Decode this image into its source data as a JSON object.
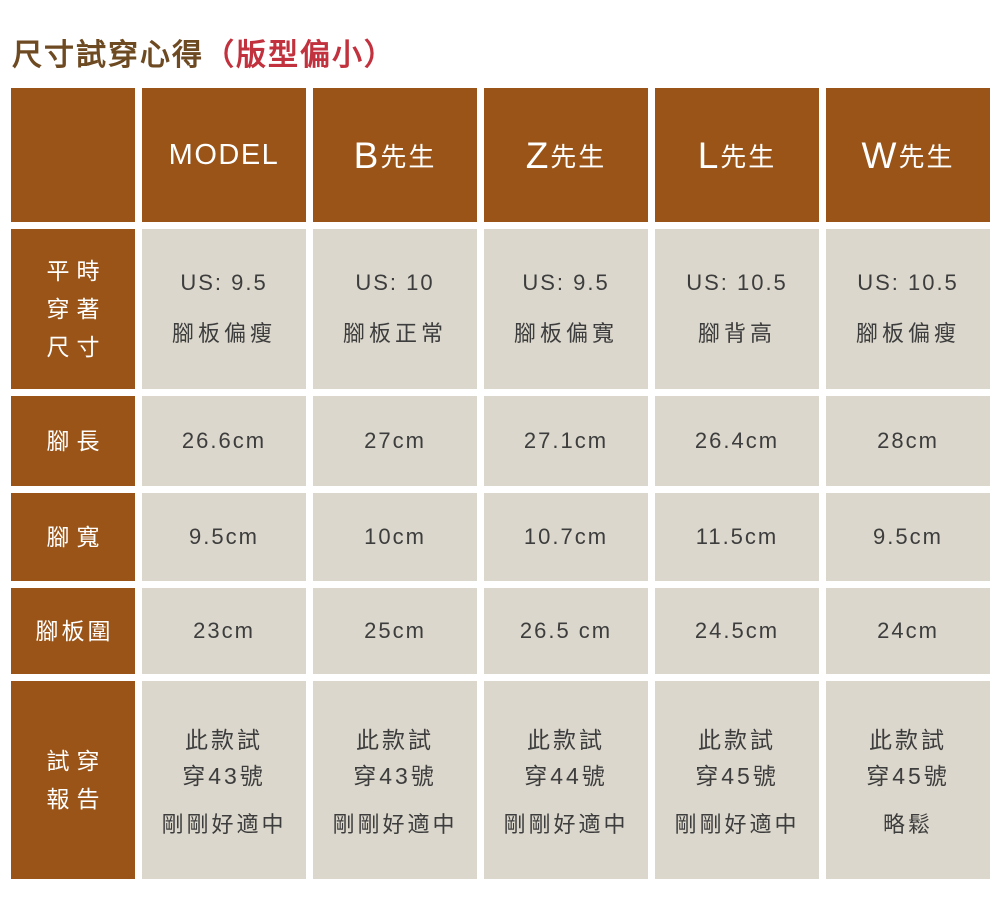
{
  "title": {
    "main": "尺寸試穿心得",
    "paren": "（版型偏小）"
  },
  "colors": {
    "header_brown": "#9a5418",
    "cell_beige": "#dbd7cc",
    "title_brown": "#6e4a22",
    "title_red": "#c1323e",
    "cell_text": "#3d3d3d",
    "header_text": "#ffffff"
  },
  "header": {
    "model": "MODEL",
    "testers": [
      {
        "latin": "B",
        "suffix": "先生"
      },
      {
        "latin": "Z",
        "suffix": "先生"
      },
      {
        "latin": "L",
        "suffix": "先生"
      },
      {
        "latin": "W",
        "suffix": "先生"
      }
    ]
  },
  "rows": {
    "usual": {
      "label": [
        "平時",
        "穿著",
        "尺寸"
      ],
      "cells": [
        {
          "size": "US: 9.5",
          "foot": "腳板偏瘦"
        },
        {
          "size": "US: 10",
          "foot": "腳板正常"
        },
        {
          "size": "US: 9.5",
          "foot": "腳板偏寬"
        },
        {
          "size": "US: 10.5",
          "foot": "腳背高"
        },
        {
          "size": "US: 10.5",
          "foot": "腳板偏瘦"
        }
      ]
    },
    "foot_length": {
      "label": "腳長",
      "cells": [
        "26.6cm",
        "27cm",
        "27.1cm",
        "26.4cm",
        "28cm"
      ]
    },
    "foot_width": {
      "label": "腳寬",
      "cells": [
        "9.5cm",
        "10cm",
        "10.7cm",
        "11.5cm",
        "9.5cm"
      ]
    },
    "foot_girth": {
      "label": "腳板圍",
      "cells": [
        "23cm",
        "25cm",
        "26.5 cm",
        "24.5cm",
        "24cm"
      ]
    },
    "report": {
      "label": [
        "試穿",
        "報告"
      ],
      "cells": [
        {
          "l1": "此款試",
          "l2": "穿43號",
          "note": "剛剛好適中"
        },
        {
          "l1": "此款試",
          "l2": "穿43號",
          "note": "剛剛好適中"
        },
        {
          "l1": "此款試",
          "l2": "穿44號",
          "note": "剛剛好適中"
        },
        {
          "l1": "此款試",
          "l2": "穿45號",
          "note": "剛剛好適中"
        },
        {
          "l1": "此款試",
          "l2": "穿45號",
          "note": "略鬆"
        }
      ]
    }
  },
  "chart_data": {
    "type": "table",
    "title": "尺寸試穿心得（版型偏小）",
    "columns": [
      "",
      "MODEL",
      "B先生",
      "Z先生",
      "L先生",
      "W先生"
    ],
    "rows": [
      [
        "平時穿著尺寸",
        "US: 9.5 腳板偏瘦",
        "US: 10 腳板正常",
        "US: 9.5 腳板偏寬",
        "US: 10.5 腳背高",
        "US: 10.5 腳板偏瘦"
      ],
      [
        "腳長",
        "26.6cm",
        "27cm",
        "27.1cm",
        "26.4cm",
        "28cm"
      ],
      [
        "腳寬",
        "9.5cm",
        "10cm",
        "10.7cm",
        "11.5cm",
        "9.5cm"
      ],
      [
        "腳板圍",
        "23cm",
        "25cm",
        "26.5 cm",
        "24.5cm",
        "24cm"
      ],
      [
        "試穿報告",
        "此款試穿43號 剛剛好適中",
        "此款試穿43號 剛剛好適中",
        "此款試穿44號 剛剛好適中",
        "此款試穿45號 剛剛好適中",
        "此款試穿45號 略鬆"
      ]
    ]
  }
}
